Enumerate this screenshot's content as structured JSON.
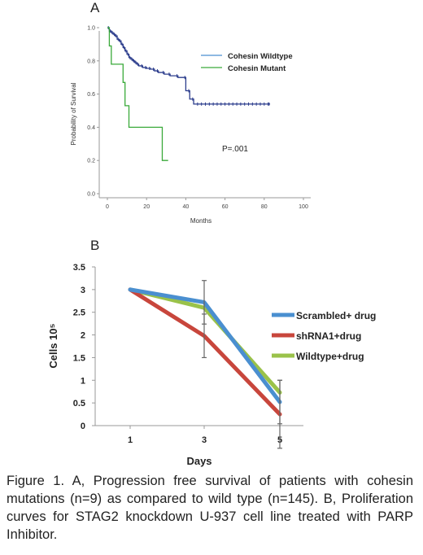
{
  "chart_data": [
    {
      "panel": "A",
      "type": "line",
      "title": "",
      "xlabel": "Months",
      "ylabel": "Probability of Survival",
      "xlim": [
        0,
        100
      ],
      "ylim": [
        0,
        1.0
      ],
      "xticks": [
        0,
        20,
        40,
        60,
        80,
        100
      ],
      "yticks": [
        0.0,
        0.2,
        0.4,
        0.6,
        0.8,
        1.0
      ],
      "xtick_labels": [
        "0",
        "20",
        "40",
        "60",
        "80",
        "100"
      ],
      "ytick_labels": [
        "0.0",
        "0.2",
        "0.4",
        "0.6",
        "0.8",
        "1.0"
      ],
      "grid": false,
      "legend_position": "top-right",
      "annotation": "P=.001",
      "series": [
        {
          "name": "Cohesin Wildtype",
          "color": "#2b3c8c",
          "step": true,
          "x": [
            0,
            1,
            2,
            3,
            4,
            5,
            6,
            7,
            8,
            9,
            10,
            11,
            12,
            13,
            14,
            15,
            16,
            18,
            20,
            22,
            24,
            26,
            29,
            32,
            36,
            40,
            42,
            44,
            83
          ],
          "y": [
            1.0,
            0.98,
            0.97,
            0.96,
            0.95,
            0.93,
            0.92,
            0.9,
            0.88,
            0.86,
            0.84,
            0.82,
            0.81,
            0.8,
            0.79,
            0.78,
            0.77,
            0.76,
            0.755,
            0.75,
            0.74,
            0.73,
            0.72,
            0.71,
            0.7,
            0.62,
            0.57,
            0.54,
            0.54
          ]
        },
        {
          "name": "Cohesin Mutant",
          "color": "#3aaa3a",
          "step": true,
          "x": [
            0,
            1,
            2,
            8,
            9,
            11,
            28,
            31
          ],
          "y": [
            1.0,
            0.89,
            0.78,
            0.67,
            0.53,
            0.4,
            0.2,
            0.2
          ]
        }
      ]
    },
    {
      "panel": "B",
      "type": "line",
      "title": "",
      "xlabel": "Days",
      "ylabel": "Cells 10⁵",
      "categories": [
        "1",
        "3",
        "5"
      ],
      "ylim": [
        0,
        3.5
      ],
      "yticks": [
        0,
        0.5,
        1,
        1.5,
        2,
        2.5,
        3,
        3.5
      ],
      "ytick_labels": [
        "0",
        "0.5",
        "1",
        "1.5",
        "2",
        "2.5",
        "3",
        "3.5"
      ],
      "grid": false,
      "legend_position": "right",
      "series": [
        {
          "name": "Scrambled+ drug",
          "color": "#4a8fd0",
          "values": [
            3.0,
            2.72,
            0.52
          ],
          "error": [
            0,
            0.48,
            0.48
          ]
        },
        {
          "name": "shRNA1+drug",
          "color": "#c8463c",
          "values": [
            3.0,
            1.98,
            0.25
          ],
          "error": [
            0,
            0.48,
            0.75
          ]
        },
        {
          "name": "Wildtype+drug",
          "color": "#9ac24a",
          "values": [
            3.0,
            2.6,
            0.73
          ],
          "error": [
            0,
            0,
            0
          ]
        }
      ]
    }
  ],
  "caption": "Figure 1. A, Progression free survival of patients with cohesin mutations (n=9) as compared to wild type (n=145). B, Proliferation curves for STAG2 knockdown U-937 cell line treated with PARP Inhibitor."
}
